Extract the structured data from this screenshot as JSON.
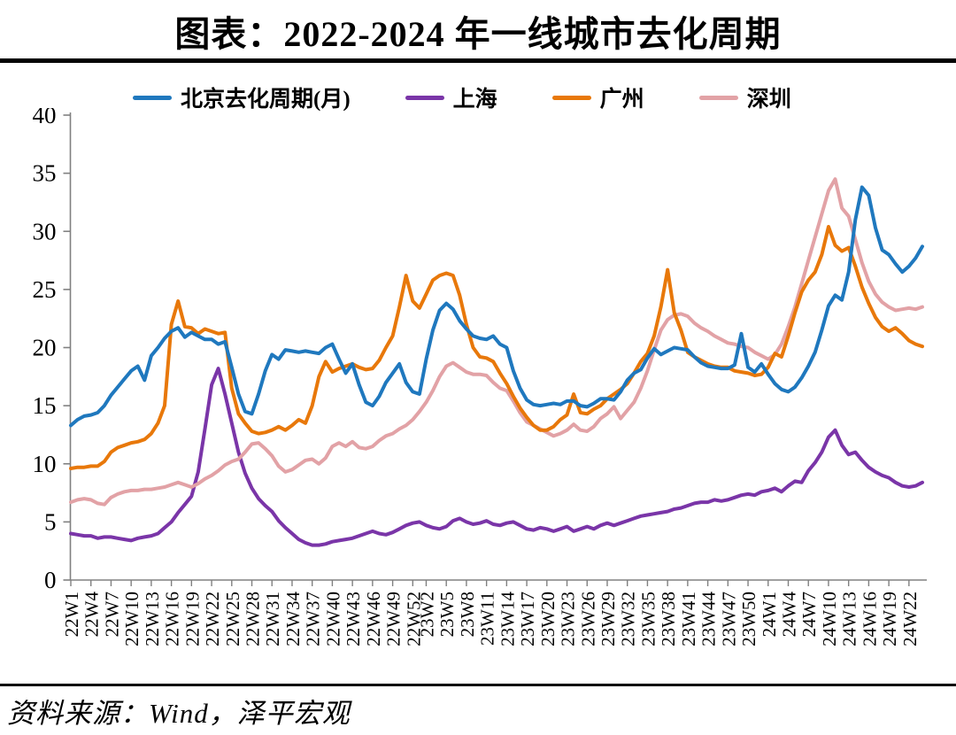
{
  "title": "图表：2022-2024 年一线城市去化周期",
  "source": "资料来源：Wind，泽平宏观",
  "colors": {
    "beijing": "#1f78be",
    "shanghai": "#7a35a8",
    "guangzhou": "#e8780a",
    "shenzhen": "#e2a2a6",
    "axis": "#808080",
    "text": "#000000"
  },
  "chart_data": {
    "type": "line",
    "title": "图表：2022-2024 年一线城市去化周期",
    "xlabel": "",
    "ylabel": "",
    "ylim": [
      0,
      40
    ],
    "y_ticks": [
      0,
      5,
      10,
      15,
      20,
      25,
      30,
      35,
      40
    ],
    "grid": false,
    "legend_position": "top",
    "x_unit": "week",
    "x_labels": [
      "22W1",
      "22W4",
      "22W7",
      "22W10",
      "22W13",
      "22W16",
      "22W19",
      "22W22",
      "22W25",
      "22W28",
      "22W31",
      "22W34",
      "22W37",
      "22W40",
      "22W43",
      "22W46",
      "22W49",
      "22W52",
      "23W2",
      "23W5",
      "23W8",
      "23W11",
      "23W14",
      "23W17",
      "23W20",
      "23W23",
      "23W26",
      "23W29",
      "23W32",
      "23W35",
      "23W38",
      "23W41",
      "23W44",
      "23W47",
      "23W50",
      "24W1",
      "24W4",
      "24W7",
      "24W10",
      "24W13",
      "24W16",
      "24W19",
      "24W22"
    ],
    "weeks_total": 128,
    "series": [
      {
        "name": "北京去化周期(月)",
        "color": "#1f78be",
        "values": [
          13.3,
          13.8,
          14.1,
          14.2,
          14.4,
          15.0,
          15.9,
          16.6,
          17.3,
          18.0,
          18.4,
          17.2,
          19.3,
          20.0,
          20.8,
          21.4,
          21.7,
          20.9,
          21.3,
          21.0,
          20.7,
          20.7,
          20.3,
          20.5,
          18.3,
          16.0,
          14.5,
          14.3,
          16.0,
          18.0,
          19.4,
          19.0,
          19.8,
          19.7,
          19.6,
          19.7,
          19.6,
          19.5,
          20.0,
          20.3,
          19.0,
          17.8,
          18.6,
          16.8,
          15.3,
          15.0,
          15.8,
          17.0,
          17.8,
          18.6,
          17.0,
          16.2,
          16.0,
          19.0,
          21.5,
          23.2,
          23.8,
          23.3,
          22.3,
          21.6,
          21.0,
          20.8,
          20.7,
          21.0,
          20.3,
          20.0,
          18.0,
          16.5,
          15.5,
          15.1,
          15.0,
          15.1,
          15.2,
          15.1,
          15.4,
          15.4,
          15.0,
          14.9,
          15.2,
          15.6,
          15.6,
          15.5,
          16.2,
          17.2,
          17.8,
          18.1,
          19.1,
          19.9,
          19.4,
          19.7,
          20.0,
          19.9,
          19.8,
          19.2,
          18.7,
          18.4,
          18.3,
          18.2,
          18.2,
          18.5,
          21.2,
          18.3,
          17.9,
          18.6,
          17.7,
          16.9,
          16.4,
          16.2,
          16.6,
          17.4,
          18.4,
          19.6,
          21.5,
          23.6,
          24.5,
          24.1,
          26.5,
          31.0,
          33.8,
          33.1,
          30.3,
          28.4,
          28.0,
          27.2,
          26.5,
          27.0,
          27.7,
          28.7
        ]
      },
      {
        "name": "上海",
        "color": "#7a35a8",
        "values": [
          4.0,
          3.9,
          3.8,
          3.8,
          3.6,
          3.7,
          3.7,
          3.6,
          3.5,
          3.4,
          3.6,
          3.7,
          3.8,
          4.0,
          4.5,
          5.0,
          5.8,
          6.5,
          7.2,
          9.3,
          13.0,
          16.8,
          18.2,
          16.0,
          13.5,
          11.0,
          9.2,
          7.9,
          7.0,
          6.4,
          5.9,
          5.1,
          4.5,
          4.0,
          3.5,
          3.2,
          3.0,
          3.0,
          3.1,
          3.3,
          3.4,
          3.5,
          3.6,
          3.8,
          4.0,
          4.2,
          4.0,
          3.9,
          4.1,
          4.4,
          4.7,
          4.9,
          5.0,
          4.7,
          4.5,
          4.4,
          4.6,
          5.1,
          5.3,
          5.0,
          4.8,
          4.9,
          5.1,
          4.8,
          4.7,
          4.9,
          5.0,
          4.7,
          4.4,
          4.3,
          4.5,
          4.4,
          4.2,
          4.4,
          4.6,
          4.2,
          4.4,
          4.6,
          4.4,
          4.7,
          4.9,
          4.7,
          4.9,
          5.1,
          5.3,
          5.5,
          5.6,
          5.7,
          5.8,
          5.9,
          6.1,
          6.2,
          6.4,
          6.6,
          6.7,
          6.7,
          6.9,
          6.8,
          6.9,
          7.1,
          7.3,
          7.4,
          7.3,
          7.6,
          7.7,
          7.9,
          7.6,
          8.1,
          8.5,
          8.4,
          9.4,
          10.1,
          11.0,
          12.3,
          12.9,
          11.6,
          10.8,
          11.0,
          10.3,
          9.7,
          9.3,
          9.0,
          8.8,
          8.4,
          8.1,
          8.0,
          8.1,
          8.4
        ]
      },
      {
        "name": "广州",
        "color": "#e8780a",
        "values": [
          9.6,
          9.7,
          9.7,
          9.8,
          9.8,
          10.2,
          11.0,
          11.4,
          11.6,
          11.8,
          11.9,
          12.1,
          12.6,
          13.5,
          15.0,
          22.0,
          24.0,
          21.8,
          21.7,
          21.2,
          21.6,
          21.4,
          21.2,
          21.3,
          16.5,
          14.3,
          13.5,
          12.8,
          12.6,
          12.7,
          12.9,
          13.2,
          12.9,
          13.3,
          13.8,
          13.5,
          15.0,
          17.5,
          18.8,
          17.9,
          18.2,
          18.4,
          18.6,
          18.3,
          18.1,
          18.2,
          18.9,
          20.0,
          21.0,
          23.5,
          26.2,
          24.0,
          23.4,
          24.6,
          25.8,
          26.2,
          26.4,
          26.2,
          24.5,
          22.0,
          20.0,
          19.2,
          19.1,
          18.8,
          17.8,
          16.9,
          15.8,
          14.8,
          14.0,
          13.3,
          12.9,
          12.9,
          13.2,
          13.8,
          14.2,
          16.0,
          14.4,
          14.3,
          14.7,
          15.0,
          15.6,
          16.0,
          16.4,
          16.9,
          17.8,
          18.8,
          19.5,
          21.0,
          23.5,
          26.7,
          23.0,
          21.5,
          19.6,
          19.2,
          18.9,
          18.6,
          18.4,
          18.3,
          18.3,
          18.0,
          17.9,
          17.8,
          17.6,
          17.7,
          18.3,
          19.5,
          19.2,
          21.0,
          23.0,
          24.8,
          25.8,
          26.5,
          28.0,
          30.4,
          28.8,
          28.3,
          28.6,
          27.0,
          25.2,
          23.8,
          22.6,
          21.8,
          21.4,
          21.7,
          21.2,
          20.6,
          20.3,
          20.1
        ]
      },
      {
        "name": "深圳",
        "color": "#e2a2a6",
        "values": [
          6.7,
          6.9,
          7.0,
          6.9,
          6.6,
          6.5,
          7.1,
          7.4,
          7.6,
          7.7,
          7.7,
          7.8,
          7.8,
          7.9,
          8.0,
          8.2,
          8.4,
          8.2,
          8.0,
          8.3,
          8.7,
          9.0,
          9.4,
          9.9,
          10.2,
          10.4,
          11.0,
          11.7,
          11.8,
          11.3,
          10.7,
          9.8,
          9.3,
          9.5,
          9.9,
          10.3,
          10.4,
          10.0,
          10.5,
          11.5,
          11.8,
          11.5,
          11.9,
          11.4,
          11.3,
          11.5,
          12.0,
          12.4,
          12.6,
          13.0,
          13.3,
          13.8,
          14.5,
          15.3,
          16.3,
          17.5,
          18.4,
          18.7,
          18.3,
          17.9,
          17.7,
          17.7,
          17.6,
          17.0,
          16.5,
          16.3,
          15.4,
          14.4,
          13.6,
          13.3,
          13.0,
          12.7,
          12.4,
          12.6,
          12.9,
          13.4,
          12.9,
          12.8,
          13.2,
          13.9,
          14.3,
          14.9,
          13.9,
          14.6,
          15.3,
          16.5,
          18.0,
          19.8,
          21.5,
          22.4,
          22.8,
          22.9,
          22.7,
          22.1,
          21.7,
          21.4,
          21.0,
          20.7,
          20.4,
          20.3,
          20.1,
          20.0,
          19.6,
          19.3,
          19.0,
          19.4,
          20.3,
          21.8,
          23.5,
          25.5,
          27.5,
          29.5,
          31.5,
          33.5,
          34.5,
          32.0,
          31.3,
          29.3,
          27.3,
          25.7,
          24.6,
          23.9,
          23.5,
          23.2,
          23.3,
          23.4,
          23.3,
          23.5
        ]
      }
    ]
  }
}
